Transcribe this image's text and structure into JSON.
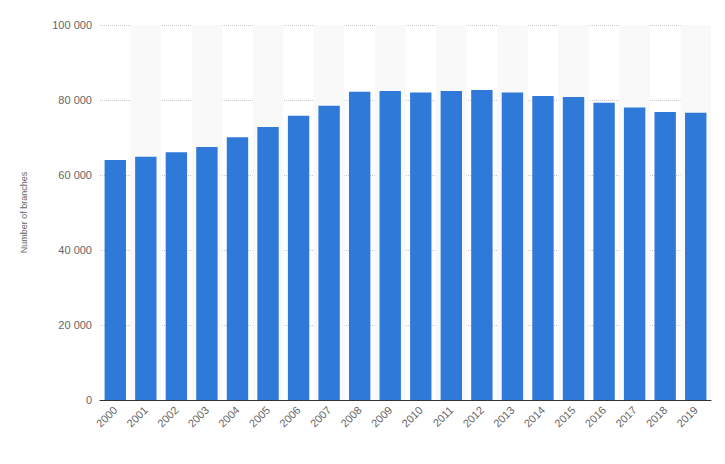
{
  "chart_data": {
    "type": "bar",
    "y_label": "Number of branches",
    "categories": [
      "2000",
      "2001",
      "2002",
      "2003",
      "2004",
      "2005",
      "2006",
      "2007",
      "2008",
      "2009",
      "2010",
      "2011",
      "2012",
      "2013",
      "2014",
      "2015",
      "2016",
      "2017",
      "2018",
      "2019"
    ],
    "values": [
      64000,
      64900,
      66100,
      67500,
      70100,
      72800,
      75800,
      78500,
      82200,
      82400,
      82000,
      82400,
      82700,
      82000,
      81100,
      80800,
      79300,
      78000,
      76800,
      76600
    ],
    "color": "#2f7ad9",
    "ylim": [
      0,
      100000
    ],
    "yticks": [
      0,
      {
        "value": 20000,
        "label": "20 000"
      },
      {
        "value": 40000,
        "label": "40 000"
      },
      {
        "value": 60000,
        "label": "60 000"
      },
      {
        "value": 80000,
        "label": "80 000"
      },
      {
        "value": 100000,
        "label": "100 000"
      }
    ],
    "grid": true
  }
}
